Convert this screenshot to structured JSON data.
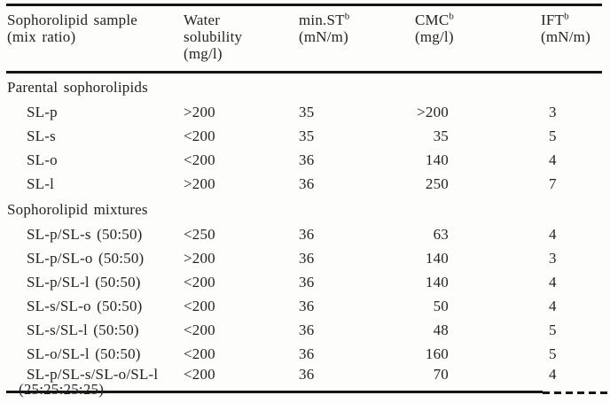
{
  "colors": {
    "background": "#fdfdfc",
    "text": "#232323",
    "rule": "#161616"
  },
  "table": {
    "columns": [
      {
        "line1": "Sophorolipid sample",
        "line2": "(mix ratio)"
      },
      {
        "line1": "Water",
        "line2": "solubility",
        "line3": "(mg/l)"
      },
      {
        "name": "min.ST",
        "sup": "b",
        "unit": "(mN/m)"
      },
      {
        "name": "CMC",
        "sup": "b",
        "unit": "(mg/l)"
      },
      {
        "name": "IFT",
        "sup": "b",
        "unit": "(mN/m)"
      }
    ],
    "sections": [
      {
        "title": "Parental sophorolipids",
        "rows": [
          {
            "sample": "SL-p",
            "water_solubility": ">200",
            "min_st": "35",
            "cmc": ">200",
            "ift": "3"
          },
          {
            "sample": "SL-s",
            "water_solubility": "<200",
            "min_st": "35",
            "cmc": "35",
            "ift": "5"
          },
          {
            "sample": "SL-o",
            "water_solubility": "<200",
            "min_st": "36",
            "cmc": "140",
            "ift": "4"
          },
          {
            "sample": "SL-l",
            "water_solubility": ">200",
            "min_st": "36",
            "cmc": "250",
            "ift": "7"
          }
        ]
      },
      {
        "title": "Sophorolipid mixtures",
        "rows": [
          {
            "sample": "SL-p/SL-s (50:50)",
            "water_solubility": "<250",
            "min_st": "36",
            "cmc": "63",
            "ift": "4"
          },
          {
            "sample": "SL-p/SL-o (50:50)",
            "water_solubility": ">200",
            "min_st": "36",
            "cmc": "140",
            "ift": "3"
          },
          {
            "sample": "SL-p/SL-l (50:50)",
            "water_solubility": "<200",
            "min_st": "36",
            "cmc": "140",
            "ift": "4"
          },
          {
            "sample": "SL-s/SL-o (50:50)",
            "water_solubility": "<200",
            "min_st": "36",
            "cmc": "50",
            "ift": "4"
          },
          {
            "sample": "SL-s/SL-l (50:50)",
            "water_solubility": "<200",
            "min_st": "36",
            "cmc": "48",
            "ift": "5"
          },
          {
            "sample": "SL-o/SL-l (50:50)",
            "water_solubility": "<200",
            "min_st": "36",
            "cmc": "160",
            "ift": "5"
          },
          {
            "sample": "SL-p/SL-s/SL-o/SL-l",
            "sample_line2": "(25:25:25:25)",
            "water_solubility": "<200",
            "min_st": "36",
            "cmc": "70",
            "ift": "4"
          }
        ]
      }
    ]
  }
}
